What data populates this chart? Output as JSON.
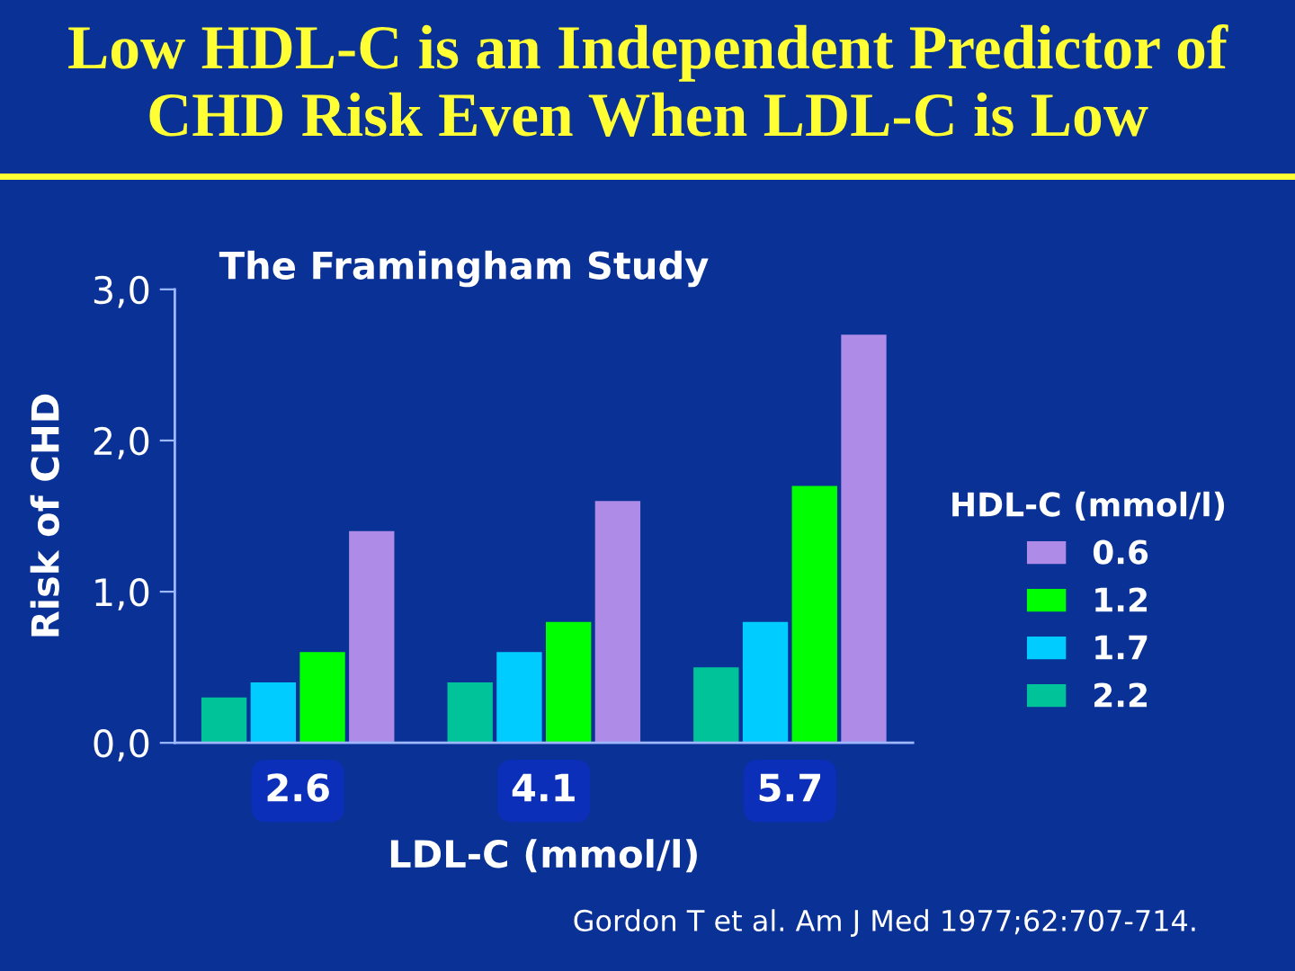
{
  "chart_data": {
    "type": "bar",
    "title": "Low HDL-C is an Independent Predictor of CHD Risk Even When LDL-C is Low",
    "subtitle": "The Framingham Study",
    "xlabel": "LDL-C (mmol/l)",
    "ylabel": "Risk of CHD",
    "legend_title": "HDL-C (mmol/l)",
    "categories": [
      "2.6",
      "4.1",
      "5.7"
    ],
    "series": [
      {
        "name": "2.2",
        "color": "#00c39a",
        "values": [
          0.3,
          0.4,
          0.5
        ]
      },
      {
        "name": "1.7",
        "color": "#00ccff",
        "values": [
          0.4,
          0.6,
          0.8
        ]
      },
      {
        "name": "1.2",
        "color": "#00ff00",
        "values": [
          0.6,
          0.8,
          1.7
        ]
      },
      {
        "name": "0.6",
        "color": "#ad8be6",
        "values": [
          1.4,
          1.6,
          2.7
        ]
      }
    ],
    "ylim": [
      0,
      3
    ],
    "yticks": [
      {
        "value": 0,
        "label": "0,0"
      },
      {
        "value": 1,
        "label": "1,0"
      },
      {
        "value": 2,
        "label": "2,0"
      },
      {
        "value": 3,
        "label": "3,0"
      }
    ],
    "grid": false,
    "legend": "bottom right",
    "annotations": [
      "Gordon T et al. Am J Med 1977;62:707-714."
    ]
  }
}
